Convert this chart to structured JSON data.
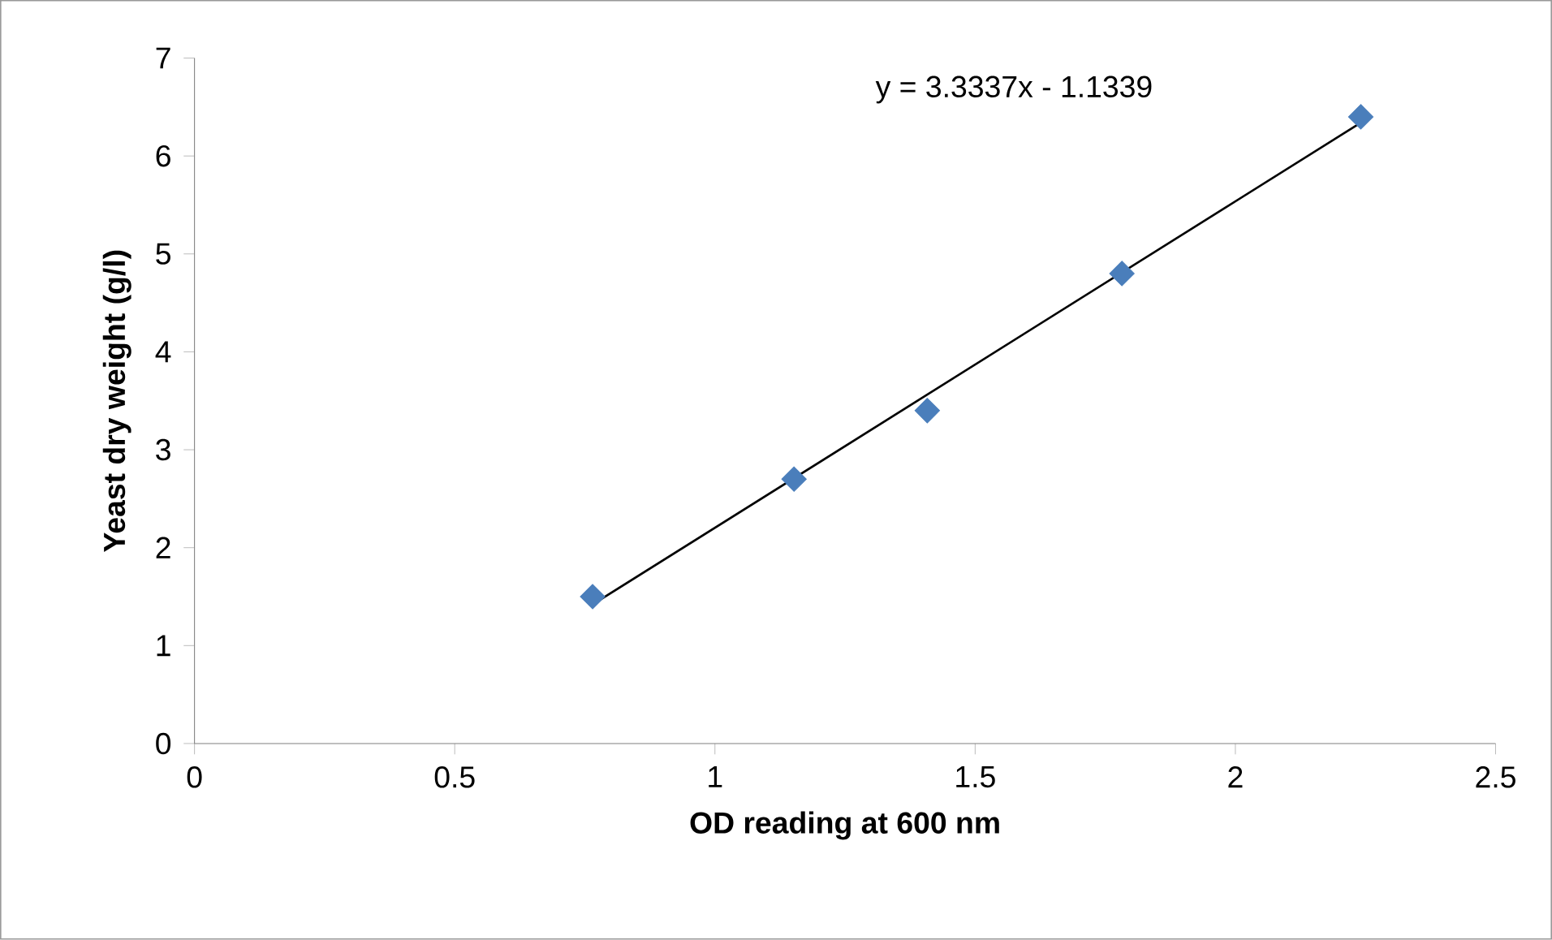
{
  "chart_data": {
    "type": "scatter",
    "xlabel": "OD reading at 600 nm",
    "ylabel": "Yeast dry weight (g/l)",
    "annotations": [
      "y = 3.3337x - 1.1339"
    ],
    "xlim": [
      0,
      2.5
    ],
    "xticks": [
      0,
      0.5,
      1,
      1.5,
      2,
      2.5
    ],
    "ylim": [
      0,
      7
    ],
    "yticks": [
      0,
      1,
      2,
      3,
      4,
      5,
      6,
      7
    ],
    "grid": false,
    "marker": "diamond",
    "series": [
      {
        "color": "#4a7ebb",
        "x": [
          0.765,
          1.152,
          1.408,
          1.782,
          2.241
        ],
        "values": [
          1.5,
          2.7,
          3.4,
          4.8,
          6.4
        ]
      },
      {
        "type": "line",
        "color": "#000000",
        "marker": "none",
        "line_style": "solid",
        "x": [
          0.765,
          2.241
        ],
        "values": [
          1.42,
          6.34
        ]
      }
    ]
  }
}
